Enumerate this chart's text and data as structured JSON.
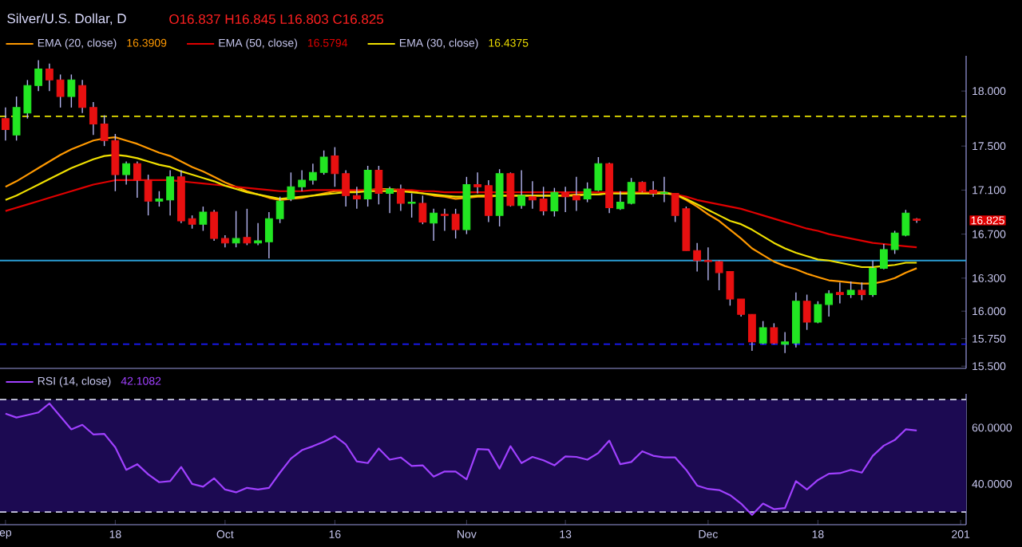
{
  "chart_data": [
    {
      "type": "candlestick",
      "title": "Silver/U.S. Dollar, D",
      "annotations": [
        "O16.837 H16.845 L16.803 C16.825",
        "16.3909",
        "16.5794",
        "16.4375",
        "16.825"
      ],
      "categories": [
        null,
        null,
        null,
        null,
        null,
        null,
        null,
        null,
        null,
        null,
        null,
        null,
        null,
        null,
        null,
        null,
        null,
        null,
        null,
        null,
        null,
        null,
        null,
        null,
        null,
        null,
        null,
        null,
        null,
        null,
        null,
        null,
        null,
        null,
        null,
        null,
        null,
        null,
        null,
        null,
        null,
        null,
        null,
        null,
        null,
        null,
        null,
        null,
        null,
        null,
        null,
        null,
        null,
        null,
        null,
        null,
        null,
        null,
        null,
        null,
        null,
        null,
        null,
        null,
        null,
        null,
        null,
        null,
        null,
        null,
        null,
        null,
        null,
        null,
        null,
        null,
        null,
        null,
        null,
        null,
        null,
        null,
        null,
        null,
        null,
        null,
        null,
        null
      ],
      "ohlc": [
        [
          17.75,
          17.85,
          17.55,
          17.65
        ],
        [
          17.6,
          17.95,
          17.55,
          17.85
        ],
        [
          17.8,
          18.1,
          17.75,
          18.05
        ],
        [
          18.05,
          18.28,
          18.0,
          18.2
        ],
        [
          18.2,
          18.25,
          18.0,
          18.1
        ],
        [
          18.1,
          18.15,
          17.85,
          17.95
        ],
        [
          17.95,
          18.15,
          17.85,
          18.1
        ],
        [
          18.05,
          18.1,
          17.8,
          17.85
        ],
        [
          17.85,
          17.9,
          17.6,
          17.7
        ],
        [
          17.7,
          17.78,
          17.5,
          17.55
        ],
        [
          17.55,
          17.61,
          17.09,
          17.24
        ],
        [
          17.24,
          17.36,
          17.15,
          17.34
        ],
        [
          17.34,
          17.36,
          17.03,
          17.19
        ],
        [
          17.19,
          17.24,
          16.87,
          17.0
        ],
        [
          17.0,
          17.09,
          16.95,
          17.02
        ],
        [
          17.01,
          17.28,
          16.87,
          17.22
        ],
        [
          17.22,
          17.28,
          16.8,
          16.82
        ],
        [
          16.84,
          16.87,
          16.75,
          16.79
        ],
        [
          16.79,
          16.95,
          16.73,
          16.9
        ],
        [
          16.9,
          16.92,
          16.64,
          16.66
        ],
        [
          16.66,
          16.69,
          16.58,
          16.62
        ],
        [
          16.62,
          16.91,
          16.58,
          16.66
        ],
        [
          16.67,
          16.93,
          16.6,
          16.62
        ],
        [
          16.62,
          16.8,
          16.6,
          16.64
        ],
        [
          16.63,
          16.9,
          16.48,
          16.84
        ],
        [
          16.84,
          17.04,
          16.8,
          17.0
        ],
        [
          17.02,
          17.26,
          17.0,
          17.13
        ],
        [
          17.13,
          17.28,
          17.09,
          17.19
        ],
        [
          17.19,
          17.34,
          17.15,
          17.26
        ],
        [
          17.26,
          17.46,
          17.24,
          17.4
        ],
        [
          17.41,
          17.49,
          17.13,
          17.25
        ],
        [
          17.25,
          17.28,
          16.95,
          17.05
        ],
        [
          17.05,
          17.13,
          16.93,
          17.02
        ],
        [
          17.02,
          17.32,
          16.95,
          17.28
        ],
        [
          17.28,
          17.32,
          16.97,
          17.07
        ],
        [
          17.07,
          17.13,
          16.89,
          17.11
        ],
        [
          17.11,
          17.15,
          16.91,
          16.98
        ],
        [
          16.98,
          17.07,
          16.85,
          16.99
        ],
        [
          16.98,
          17.05,
          16.79,
          16.81
        ],
        [
          16.8,
          16.93,
          16.64,
          16.89
        ],
        [
          16.88,
          16.93,
          16.73,
          16.87
        ],
        [
          16.88,
          16.93,
          16.66,
          16.74
        ],
        [
          16.74,
          17.22,
          16.7,
          17.15
        ],
        [
          17.15,
          17.26,
          17.07,
          17.13
        ],
        [
          17.14,
          17.19,
          16.81,
          16.87
        ],
        [
          16.87,
          17.29,
          16.77,
          17.25
        ],
        [
          17.25,
          17.26,
          16.95,
          16.96
        ],
        [
          16.96,
          17.28,
          16.93,
          17.05
        ],
        [
          17.04,
          17.18,
          16.93,
          17.01
        ],
        [
          17.02,
          17.13,
          16.87,
          16.91
        ],
        [
          16.91,
          17.12,
          16.86,
          17.08
        ],
        [
          17.08,
          17.13,
          16.9,
          17.04
        ],
        [
          17.05,
          17.22,
          16.91,
          17.01
        ],
        [
          17.02,
          17.17,
          16.99,
          17.11
        ],
        [
          17.1,
          17.4,
          17.09,
          17.34
        ],
        [
          17.34,
          17.35,
          16.89,
          16.94
        ],
        [
          16.93,
          17.09,
          16.92,
          16.99
        ],
        [
          16.98,
          17.21,
          16.97,
          17.17
        ],
        [
          17.17,
          17.18,
          17.08,
          17.09
        ],
        [
          17.1,
          17.18,
          17.04,
          17.07
        ],
        [
          17.07,
          17.22,
          16.99,
          17.08
        ],
        [
          17.07,
          17.07,
          16.81,
          16.87
        ],
        [
          16.93,
          16.95,
          16.55,
          16.55
        ],
        [
          16.55,
          16.62,
          16.36,
          16.46
        ],
        [
          16.46,
          16.58,
          16.28,
          16.45
        ],
        [
          16.45,
          16.46,
          16.19,
          16.35
        ],
        [
          16.36,
          16.36,
          16.05,
          16.11
        ],
        [
          16.11,
          16.11,
          15.95,
          15.97
        ],
        [
          15.97,
          15.97,
          15.64,
          15.72
        ],
        [
          15.71,
          15.91,
          15.7,
          15.85
        ],
        [
          15.85,
          15.89,
          15.7,
          15.71
        ],
        [
          15.7,
          15.81,
          15.62,
          15.72
        ],
        [
          15.71,
          16.17,
          15.67,
          16.09
        ],
        [
          16.09,
          16.15,
          15.83,
          15.9
        ],
        [
          15.9,
          16.09,
          15.89,
          16.06
        ],
        [
          16.06,
          16.19,
          15.95,
          16.16
        ],
        [
          16.17,
          16.26,
          16.07,
          16.15
        ],
        [
          16.15,
          16.27,
          16.12,
          16.19
        ],
        [
          16.19,
          16.26,
          16.1,
          16.15
        ],
        [
          16.15,
          16.46,
          16.13,
          16.39
        ],
        [
          16.39,
          16.61,
          16.38,
          16.56
        ],
        [
          16.56,
          16.73,
          16.52,
          16.71
        ],
        [
          16.69,
          16.92,
          16.68,
          16.89
        ],
        [
          16.837,
          16.845,
          16.803,
          16.825
        ],
        null,
        null,
        null,
        null
      ],
      "colors": [
        "#e81010",
        "#22e622",
        "#22e622",
        "#22e622",
        "#e81010",
        "#e81010",
        "#22e622",
        "#e81010",
        "#e81010",
        "#e81010",
        "#e81010",
        "#22e622",
        "#e81010",
        "#e81010",
        "#22e622",
        "#22e622",
        "#e81010",
        "#e81010",
        "#22e622",
        "#e81010",
        "#e81010",
        "#22e622",
        "#e81010",
        "#22e622",
        "#22e622",
        "#22e622",
        "#22e622",
        "#22e622",
        "#22e622",
        "#22e622",
        "#e81010",
        "#e81010",
        "#e81010",
        "#22e622",
        "#e81010",
        "#22e622",
        "#e81010",
        "#22e622",
        "#e81010",
        "#22e622",
        "#e81010",
        "#e81010",
        "#22e622",
        "#e81010",
        "#e81010",
        "#22e622",
        "#e81010",
        "#22e622",
        "#e81010",
        "#e81010",
        "#22e622",
        "#e81010",
        "#e81010",
        "#22e622",
        "#22e622",
        "#e81010",
        "#22e622",
        "#22e622",
        "#e81010",
        "#e81010",
        "#22e622",
        "#e81010",
        "#e81010",
        "#e81010",
        "#e81010",
        "#e81010",
        "#e81010",
        "#e81010",
        "#e81010",
        "#22e622",
        "#e81010",
        "#22e622",
        "#22e622",
        "#e81010",
        "#22e622",
        "#22e622",
        "#e81010",
        "#22e622",
        "#e81010",
        "#22e622",
        "#22e622",
        "#22e622",
        "#22e622",
        "#e81010",
        null,
        null,
        null,
        null
      ],
      "series": [
        {
          "name": "EMA (20, close)",
          "type": "line",
          "color": "#ff9900",
          "values": [
            17.13,
            17.18,
            17.24,
            17.3,
            17.36,
            17.42,
            17.47,
            17.51,
            17.55,
            17.57,
            17.58,
            17.55,
            17.52,
            17.48,
            17.44,
            17.41,
            17.36,
            17.31,
            17.27,
            17.22,
            17.17,
            17.13,
            17.09,
            17.06,
            17.03,
            17.01,
            17.02,
            17.03,
            17.05,
            17.07,
            17.09,
            17.09,
            17.09,
            17.1,
            17.11,
            17.11,
            17.1,
            17.09,
            17.07,
            17.05,
            17.04,
            17.02,
            17.03,
            17.04,
            17.04,
            17.05,
            17.05,
            17.05,
            17.05,
            17.05,
            17.05,
            17.05,
            17.06,
            17.06,
            17.06,
            17.08,
            17.07,
            17.07,
            17.08,
            17.08,
            17.08,
            17.06,
            17.01,
            16.95,
            16.88,
            16.82,
            16.74,
            16.66,
            16.57,
            16.51,
            16.45,
            16.41,
            16.38,
            16.34,
            16.31,
            16.28,
            16.27,
            16.26,
            16.25,
            16.25,
            16.27,
            16.3,
            16.35,
            16.39,
            null,
            null,
            null,
            null
          ]
        },
        {
          "name": "EMA (50, close)",
          "type": "line",
          "color": "#e00000",
          "values": [
            16.91,
            16.94,
            16.97,
            17.0,
            17.03,
            17.06,
            17.09,
            17.12,
            17.15,
            17.17,
            17.19,
            17.19,
            17.19,
            17.19,
            17.19,
            17.19,
            17.18,
            17.17,
            17.16,
            17.15,
            17.14,
            17.13,
            17.12,
            17.11,
            17.1,
            17.09,
            17.09,
            17.09,
            17.1,
            17.1,
            17.1,
            17.1,
            17.1,
            17.1,
            17.1,
            17.1,
            17.1,
            17.1,
            17.09,
            17.09,
            17.08,
            17.08,
            17.08,
            17.08,
            17.08,
            17.08,
            17.08,
            17.08,
            17.08,
            17.08,
            17.08,
            17.08,
            17.08,
            17.08,
            17.08,
            17.08,
            17.08,
            17.08,
            17.08,
            17.08,
            17.07,
            17.06,
            17.04,
            17.01,
            16.99,
            16.97,
            16.95,
            16.93,
            16.9,
            16.87,
            16.84,
            16.81,
            16.78,
            16.75,
            16.73,
            16.7,
            16.68,
            16.66,
            16.64,
            16.62,
            16.61,
            16.6,
            16.59,
            16.58,
            null,
            null,
            null,
            null
          ]
        },
        {
          "name": "EMA (30, close)",
          "type": "line",
          "color": "#f0e000",
          "values": [
            17.01,
            17.05,
            17.1,
            17.15,
            17.2,
            17.25,
            17.3,
            17.34,
            17.38,
            17.41,
            17.42,
            17.41,
            17.39,
            17.36,
            17.33,
            17.31,
            17.27,
            17.24,
            17.21,
            17.18,
            17.14,
            17.11,
            17.08,
            17.06,
            17.04,
            17.02,
            17.03,
            17.04,
            17.05,
            17.06,
            17.07,
            17.08,
            17.08,
            17.09,
            17.09,
            17.09,
            17.09,
            17.08,
            17.07,
            17.06,
            17.05,
            17.04,
            17.04,
            17.05,
            17.05,
            17.05,
            17.05,
            17.05,
            17.05,
            17.05,
            17.05,
            17.05,
            17.05,
            17.06,
            17.06,
            17.07,
            17.07,
            17.07,
            17.07,
            17.07,
            17.07,
            17.06,
            17.02,
            16.97,
            16.92,
            16.87,
            16.82,
            16.79,
            16.74,
            16.68,
            16.62,
            16.57,
            16.53,
            16.5,
            16.47,
            16.46,
            16.44,
            16.42,
            16.4,
            16.4,
            16.41,
            16.42,
            16.44,
            16.44,
            null,
            null,
            null,
            null
          ]
        }
      ],
      "ylim": [
        15.48,
        18.32
      ],
      "yticks": [
        {
          "value": 15.5,
          "label": "15.500"
        },
        {
          "value": 15.75,
          "label": "15.750"
        },
        {
          "value": 16.0,
          "label": "16.000"
        },
        {
          "value": 16.3,
          "label": "16.300"
        },
        {
          "value": 16.7,
          "label": "16.700"
        },
        {
          "value": 17.1,
          "label": "17.100"
        },
        {
          "value": 17.5,
          "label": "17.500"
        },
        {
          "value": 18.0,
          "label": "18.000"
        }
      ],
      "ref_lines": [
        {
          "axis": "y",
          "value": 17.77,
          "color": "#e5e000",
          "line_style": "dashed"
        },
        {
          "axis": "y",
          "value": 16.46,
          "color": "#2a9fd6",
          "line_style": "solid"
        },
        {
          "axis": "y",
          "value": 15.7,
          "color": "#1a1aff",
          "line_style": "dashed"
        }
      ],
      "legend": "top left",
      "tick_labels": "y"
    },
    {
      "type": "line",
      "annotations": [
        "42.1082"
      ],
      "categories": [
        "ep",
        null,
        null,
        null,
        null,
        null,
        null,
        null,
        null,
        null,
        "18",
        null,
        null,
        null,
        null,
        null,
        null,
        null,
        null,
        null,
        "Oct",
        null,
        null,
        null,
        null,
        null,
        null,
        null,
        null,
        null,
        "16",
        null,
        null,
        null,
        null,
        null,
        null,
        null,
        null,
        null,
        null,
        null,
        "Nov",
        null,
        null,
        null,
        null,
        null,
        null,
        null,
        null,
        "13",
        null,
        null,
        null,
        null,
        null,
        null,
        null,
        null,
        null,
        null,
        null,
        null,
        "Dec",
        null,
        null,
        null,
        null,
        null,
        null,
        null,
        null,
        null,
        "18",
        null,
        null,
        null,
        null,
        null,
        null,
        null,
        null,
        null,
        null,
        null,
        null,
        "201"
      ],
      "series": [
        {
          "name": "RSI (14, close)",
          "color": "#a040ff",
          "values": [
            65,
            63.6,
            64.5,
            65.4,
            68.6,
            64,
            59.4,
            61,
            57.6,
            57.8,
            53,
            45,
            47,
            43.4,
            40.6,
            41,
            46,
            40,
            39,
            42,
            38,
            37,
            38.6,
            38,
            38.6,
            44,
            49,
            52,
            53.4,
            55,
            57,
            54,
            48,
            47.4,
            52.6,
            48.6,
            49.4,
            46.4,
            46.6,
            42.6,
            44.4,
            44.4,
            41.6,
            52.4,
            52.2,
            45.4,
            53.4,
            47.4,
            49.6,
            48.4,
            46.6,
            49.8,
            49.6,
            48.6,
            51,
            55.4,
            47,
            47.8,
            51.6,
            50,
            49.4,
            49.4,
            45,
            39.4,
            38.2,
            37.8,
            36,
            33,
            29,
            33,
            31,
            31.4,
            41,
            38,
            41.4,
            43.6,
            43.8,
            45,
            44,
            50,
            53.6,
            55.6,
            59.4,
            59,
            null,
            null,
            null,
            null
          ]
        }
      ],
      "ylim": [
        25.5,
        72
      ],
      "yticks": [
        {
          "value": 40,
          "label": "40.0000"
        },
        {
          "value": 60,
          "label": "60.0000"
        }
      ],
      "bands": [
        {
          "axis": "y",
          "from": 30,
          "to": 70,
          "color": "#1c0a52"
        }
      ],
      "ref_lines": [
        {
          "axis": "y",
          "value": 70,
          "color": "#d0d0e8",
          "line_style": "dashed"
        },
        {
          "axis": "y",
          "value": 30,
          "color": "#d0d0e8",
          "line_style": "dashed"
        }
      ],
      "legend": "top left"
    }
  ]
}
